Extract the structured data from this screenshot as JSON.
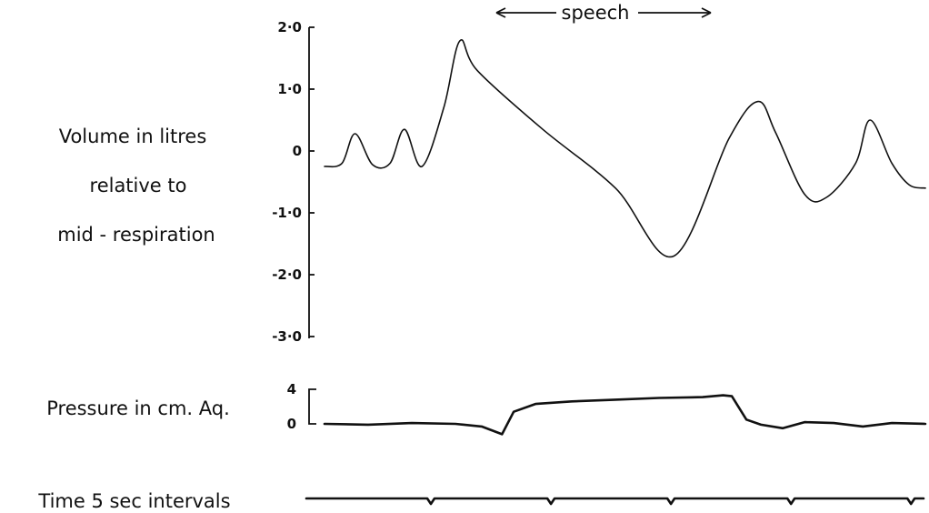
{
  "labels": {
    "volume": [
      "Volume in litres",
      "relative  to",
      "mid - respiration"
    ],
    "pressure": "Pressure in cm. Aq.",
    "time": "Time 5 sec   intervals",
    "speech": "speech"
  },
  "chart_data": [
    {
      "type": "line",
      "ylabel": "Volume in litres relative to mid - respiration",
      "ylim": [
        -3.0,
        2.0
      ],
      "yticks": [
        "2·0",
        "1·0",
        "0",
        "-1·0",
        "-2·0",
        "-3·0"
      ],
      "ytick_values": [
        2.0,
        1.0,
        0.0,
        -1.0,
        -2.0,
        -3.0
      ],
      "annotation": "speech",
      "x_unit": "sec",
      "series": [
        {
          "x": [
            0.0,
            1.2,
            2.1,
            3.3,
            4.5,
            5.5,
            6.7,
            8.2,
            9.3,
            10.5,
            15.0,
            20.0,
            24.0,
            27.8,
            29.8,
            31.0,
            33.0,
            34.5,
            36.5,
            37.5,
            39.0,
            40.2,
            41.3
          ],
          "values": [
            -0.25,
            -0.2,
            0.28,
            -0.22,
            -0.2,
            0.35,
            -0.25,
            0.7,
            1.78,
            1.3,
            0.35,
            -0.6,
            -1.7,
            0.2,
            0.8,
            0.3,
            -0.7,
            -0.75,
            -0.2,
            0.5,
            -0.2,
            -0.55,
            -0.6
          ]
        }
      ]
    },
    {
      "type": "line",
      "ylabel": "Pressure in cm. Aq.",
      "yticks": [
        "4",
        "0"
      ],
      "ytick_values": [
        4,
        0
      ],
      "ylim": [
        -1.5,
        4.5
      ],
      "x_unit": "sec",
      "series": [
        {
          "x": [
            0.0,
            3.0,
            6.0,
            9.0,
            10.8,
            12.2,
            13.0,
            14.5,
            17.0,
            20.0,
            23.0,
            26.0,
            27.4,
            28.0,
            29.0,
            30.0,
            31.5,
            33.0,
            35.0,
            37.0,
            39.0,
            41.3
          ],
          "values": [
            0.0,
            -0.1,
            0.1,
            0.0,
            -0.3,
            -1.2,
            1.4,
            2.3,
            2.6,
            2.8,
            3.0,
            3.1,
            3.3,
            3.2,
            0.5,
            -0.1,
            -0.5,
            0.2,
            0.1,
            -0.3,
            0.1,
            0.0
          ]
        }
      ]
    },
    {
      "type": "line",
      "ylabel": "Time 5 sec   intervals",
      "marker_interval_sec": 5,
      "marker_times": [
        5,
        10,
        15,
        20,
        25,
        30,
        35,
        40
      ]
    }
  ]
}
